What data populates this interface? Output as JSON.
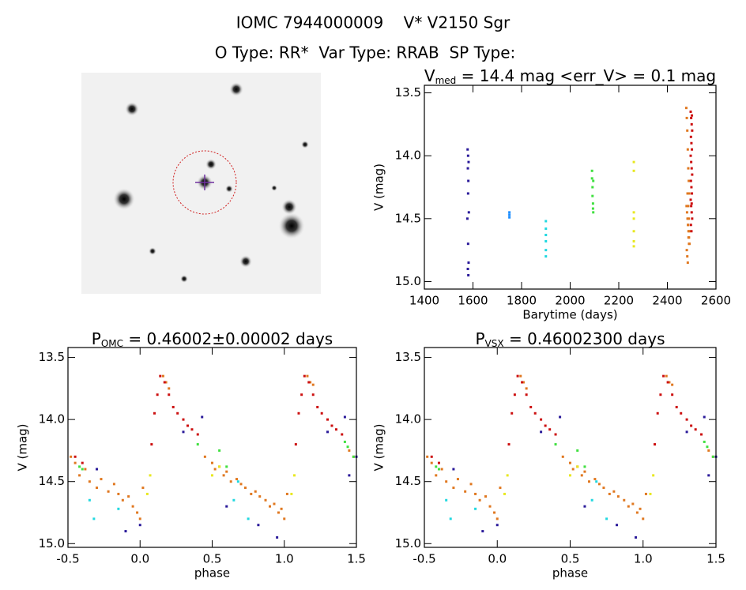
{
  "header": {
    "line1": "IOMC 7944000009    V* V2150 Sgr",
    "line2": "O Type: RR*  Var Type: RRAB  SP Type:"
  },
  "chart_data": [
    {
      "type": "scatter",
      "title": {
        "main": "V",
        "sub": "med",
        "rest": " = 14.4 mag <err_V> = 0.1 mag"
      },
      "x_label": "Barytime (days)",
      "y_label": "V (mag)",
      "xlim": [
        1400,
        2600
      ],
      "xticks": [
        1400,
        1600,
        1800,
        2000,
        2200,
        2400,
        2600
      ],
      "ylim": [
        15.06,
        13.44
      ],
      "yticks": [
        13.5,
        {
          "value": 14.0,
          "label": "14.0"
        },
        14.5,
        {
          "value": 15.0,
          "label": "15.0"
        }
      ],
      "series": [
        {
          "color": "#2a1a9a",
          "x": [
            1578,
            1580,
            1582,
            1579,
            1581,
            1580,
            1583,
            1577,
            1580,
            1582,
            1579,
            1581
          ],
          "values": [
            13.95,
            14.0,
            14.05,
            14.1,
            14.2,
            14.3,
            14.45,
            14.5,
            14.7,
            14.85,
            14.9,
            14.95
          ]
        },
        {
          "color": "#1e8fff",
          "x": [
            1750,
            1750,
            1750
          ],
          "values": [
            14.45,
            14.47,
            14.49
          ]
        },
        {
          "color": "#20d8e0",
          "x": [
            1900,
            1900,
            1900,
            1900,
            1900,
            1900
          ],
          "values": [
            14.52,
            14.58,
            14.63,
            14.68,
            14.75,
            14.8
          ]
        },
        {
          "color": "#40e040",
          "x": [
            2090,
            2090,
            2092,
            2092,
            2094,
            2094,
            2095,
            2095
          ],
          "values": [
            14.12,
            14.18,
            14.25,
            14.32,
            14.38,
            14.42,
            14.45,
            14.2
          ]
        },
        {
          "color": "#e8e820",
          "x": [
            2262,
            2262,
            2262,
            2262,
            2262,
            2262,
            2262
          ],
          "values": [
            14.05,
            14.12,
            14.45,
            14.5,
            14.6,
            14.68,
            14.72
          ]
        },
        {
          "color": "#e07820",
          "x": [
            2478,
            2480,
            2482,
            2484,
            2486,
            2488,
            2490,
            2479,
            2481,
            2483,
            2485,
            2487,
            2489,
            2491,
            2480,
            2482,
            2484,
            2486,
            2488,
            2490,
            2483,
            2485,
            2487,
            2489
          ],
          "values": [
            13.62,
            13.7,
            13.8,
            13.95,
            14.1,
            14.2,
            14.3,
            14.4,
            14.45,
            14.5,
            14.55,
            14.6,
            14.65,
            14.7,
            14.75,
            14.8,
            14.85,
            14.4,
            14.5,
            14.6,
            14.3,
            14.55,
            14.65,
            14.7
          ]
        },
        {
          "color": "#cc1010",
          "x": [
            2496,
            2498,
            2500,
            2502,
            2497,
            2499,
            2501,
            2496,
            2498,
            2500,
            2502,
            2497,
            2499,
            2501,
            2496,
            2498,
            2500,
            2502,
            2497,
            2499,
            2501,
            2500
          ],
          "values": [
            13.65,
            13.7,
            13.75,
            13.8,
            13.85,
            13.9,
            13.95,
            14.0,
            14.05,
            14.1,
            14.15,
            14.2,
            14.25,
            14.3,
            14.35,
            14.4,
            14.45,
            14.5,
            14.55,
            14.6,
            13.68,
            14.38
          ]
        }
      ]
    },
    {
      "type": "scatter",
      "title": {
        "main": "P",
        "sub": "OMC",
        "rest": " = 0.46002±0.00002 days"
      },
      "x_label": "phase",
      "y_label": "V (mag)",
      "xlim": [
        -0.5,
        1.5
      ],
      "xticks": [
        -0.5,
        {
          "value": 0.0,
          "label": "0.0"
        },
        0.5,
        {
          "value": 1.0,
          "label": "1.0"
        },
        1.5
      ],
      "ylim": [
        15.03,
        13.42
      ],
      "yticks": [
        13.5,
        {
          "value": 14.0,
          "label": "14.0"
        },
        14.5,
        {
          "value": 15.0,
          "label": "15.0"
        }
      ],
      "series": [
        {
          "color": "#e07820",
          "x": [
            -0.48,
            -0.45,
            -0.42,
            -0.38,
            -0.35,
            -0.3,
            -0.27,
            -0.22,
            -0.18,
            -0.15,
            -0.12,
            -0.08,
            -0.05,
            -0.02,
            0.0,
            0.02,
            0.16,
            0.18,
            0.2,
            0.45,
            0.5,
            0.52,
            0.55,
            0.58,
            0.6,
            0.63,
            0.67,
            0.7,
            0.73,
            0.77,
            0.8,
            0.83,
            0.87,
            0.9,
            0.93,
            0.96,
            0.98,
            1.0,
            1.02,
            1.16,
            1.18,
            1.2,
            1.45,
            1.48
          ],
          "values": [
            14.3,
            14.35,
            14.45,
            14.4,
            14.5,
            14.55,
            14.48,
            14.58,
            14.52,
            14.6,
            14.65,
            14.62,
            14.7,
            14.75,
            14.8,
            14.55,
            13.65,
            13.7,
            13.75,
            14.3,
            14.35,
            14.4,
            14.38,
            14.45,
            14.42,
            14.5,
            14.48,
            14.52,
            14.55,
            14.6,
            14.58,
            14.62,
            14.65,
            14.7,
            14.68,
            14.75,
            14.72,
            14.8,
            14.6,
            13.65,
            13.7,
            13.72,
            14.25,
            14.3
          ]
        },
        {
          "color": "#cc1010",
          "x": [
            0.08,
            0.1,
            0.12,
            0.14,
            0.17,
            0.2,
            0.23,
            0.26,
            0.3,
            0.33,
            0.36,
            0.4,
            1.08,
            1.1,
            1.12,
            1.14,
            1.17,
            1.2,
            1.23,
            1.26,
            1.3,
            1.33,
            1.36,
            1.4,
            -0.45,
            -0.4
          ],
          "values": [
            14.2,
            13.95,
            13.8,
            13.65,
            13.7,
            13.8,
            13.9,
            13.95,
            14.0,
            14.05,
            14.08,
            14.12,
            14.2,
            13.95,
            13.8,
            13.65,
            13.7,
            13.8,
            13.9,
            13.95,
            14.0,
            14.05,
            14.08,
            14.12,
            14.3,
            14.35
          ]
        },
        {
          "color": "#2a1a9a",
          "x": [
            -0.3,
            -0.1,
            0.0,
            0.3,
            0.43,
            0.6,
            0.82,
            0.95,
            1.3,
            1.42,
            1.45,
            1.5
          ],
          "values": [
            14.4,
            14.9,
            14.85,
            14.1,
            13.98,
            14.7,
            14.85,
            14.95,
            14.1,
            13.98,
            14.45,
            14.3
          ]
        },
        {
          "color": "#20d8e0",
          "x": [
            -0.35,
            -0.32,
            -0.15,
            0.65,
            0.68,
            0.75
          ],
          "values": [
            14.65,
            14.8,
            14.72,
            14.65,
            14.5,
            14.8
          ]
        },
        {
          "color": "#40e040",
          "x": [
            -0.42,
            -0.4,
            0.4,
            0.55,
            0.6,
            1.42,
            1.44,
            1.48
          ],
          "values": [
            14.38,
            14.4,
            14.2,
            14.25,
            14.38,
            14.18,
            14.22,
            14.3
          ]
        },
        {
          "color": "#e8e820",
          "x": [
            0.05,
            0.07,
            0.5,
            0.55,
            1.05,
            1.07
          ],
          "values": [
            14.6,
            14.45,
            14.45,
            14.38,
            14.6,
            14.45
          ]
        }
      ]
    },
    {
      "type": "scatter",
      "title": {
        "main": "P",
        "sub": "VSX",
        "rest": " = 0.46002300 days"
      },
      "x_label": "phase",
      "y_label": "V (mag)",
      "xlim": [
        -0.5,
        1.5
      ],
      "xticks": [
        -0.5,
        {
          "value": 0.0,
          "label": "0.0"
        },
        0.5,
        {
          "value": 1.0,
          "label": "1.0"
        },
        1.5
      ],
      "ylim": [
        15.03,
        13.42
      ],
      "yticks": [
        13.5,
        {
          "value": 14.0,
          "label": "14.0"
        },
        14.5,
        {
          "value": 15.0,
          "label": "15.0"
        }
      ],
      "series": [
        {
          "color": "#e07820",
          "x": [
            -0.48,
            -0.45,
            -0.42,
            -0.38,
            -0.35,
            -0.3,
            -0.27,
            -0.22,
            -0.18,
            -0.15,
            -0.12,
            -0.08,
            -0.05,
            -0.02,
            0.0,
            0.02,
            0.16,
            0.18,
            0.2,
            0.45,
            0.5,
            0.52,
            0.55,
            0.58,
            0.6,
            0.63,
            0.67,
            0.7,
            0.73,
            0.77,
            0.8,
            0.83,
            0.87,
            0.9,
            0.93,
            0.96,
            0.98,
            1.0,
            1.02,
            1.16,
            1.18,
            1.2,
            1.45,
            1.48
          ],
          "values": [
            14.3,
            14.35,
            14.45,
            14.4,
            14.5,
            14.55,
            14.48,
            14.58,
            14.52,
            14.6,
            14.65,
            14.62,
            14.7,
            14.75,
            14.8,
            14.55,
            13.65,
            13.7,
            13.75,
            14.3,
            14.35,
            14.4,
            14.38,
            14.45,
            14.42,
            14.5,
            14.48,
            14.52,
            14.55,
            14.6,
            14.58,
            14.62,
            14.65,
            14.7,
            14.68,
            14.75,
            14.72,
            14.8,
            14.6,
            13.65,
            13.7,
            13.72,
            14.25,
            14.3
          ]
        },
        {
          "color": "#cc1010",
          "x": [
            0.08,
            0.1,
            0.12,
            0.14,
            0.17,
            0.2,
            0.23,
            0.26,
            0.3,
            0.33,
            0.36,
            0.4,
            1.08,
            1.1,
            1.12,
            1.14,
            1.17,
            1.2,
            1.23,
            1.26,
            1.3,
            1.33,
            1.36,
            1.4,
            -0.45,
            -0.4
          ],
          "values": [
            14.2,
            13.95,
            13.8,
            13.65,
            13.7,
            13.8,
            13.9,
            13.95,
            14.0,
            14.05,
            14.08,
            14.12,
            14.2,
            13.95,
            13.8,
            13.65,
            13.7,
            13.8,
            13.9,
            13.95,
            14.0,
            14.05,
            14.08,
            14.12,
            14.3,
            14.35
          ]
        },
        {
          "color": "#2a1a9a",
          "x": [
            -0.3,
            -0.1,
            0.0,
            0.3,
            0.43,
            0.6,
            0.82,
            0.95,
            1.3,
            1.42,
            1.45,
            1.5
          ],
          "values": [
            14.4,
            14.9,
            14.85,
            14.1,
            13.98,
            14.7,
            14.85,
            14.95,
            14.1,
            13.98,
            14.45,
            14.3
          ]
        },
        {
          "color": "#20d8e0",
          "x": [
            -0.35,
            -0.32,
            -0.15,
            0.65,
            0.68,
            0.75
          ],
          "values": [
            14.65,
            14.8,
            14.72,
            14.65,
            14.5,
            14.8
          ]
        },
        {
          "color": "#40e040",
          "x": [
            -0.42,
            -0.4,
            0.4,
            0.55,
            0.6,
            1.42,
            1.44,
            1.48
          ],
          "values": [
            14.38,
            14.4,
            14.2,
            14.25,
            14.38,
            14.18,
            14.22,
            14.3
          ]
        },
        {
          "color": "#e8e820",
          "x": [
            0.05,
            0.07,
            0.5,
            0.55,
            1.05,
            1.07
          ],
          "values": [
            14.6,
            14.45,
            14.45,
            14.38,
            14.6,
            14.45
          ]
        }
      ]
    }
  ]
}
